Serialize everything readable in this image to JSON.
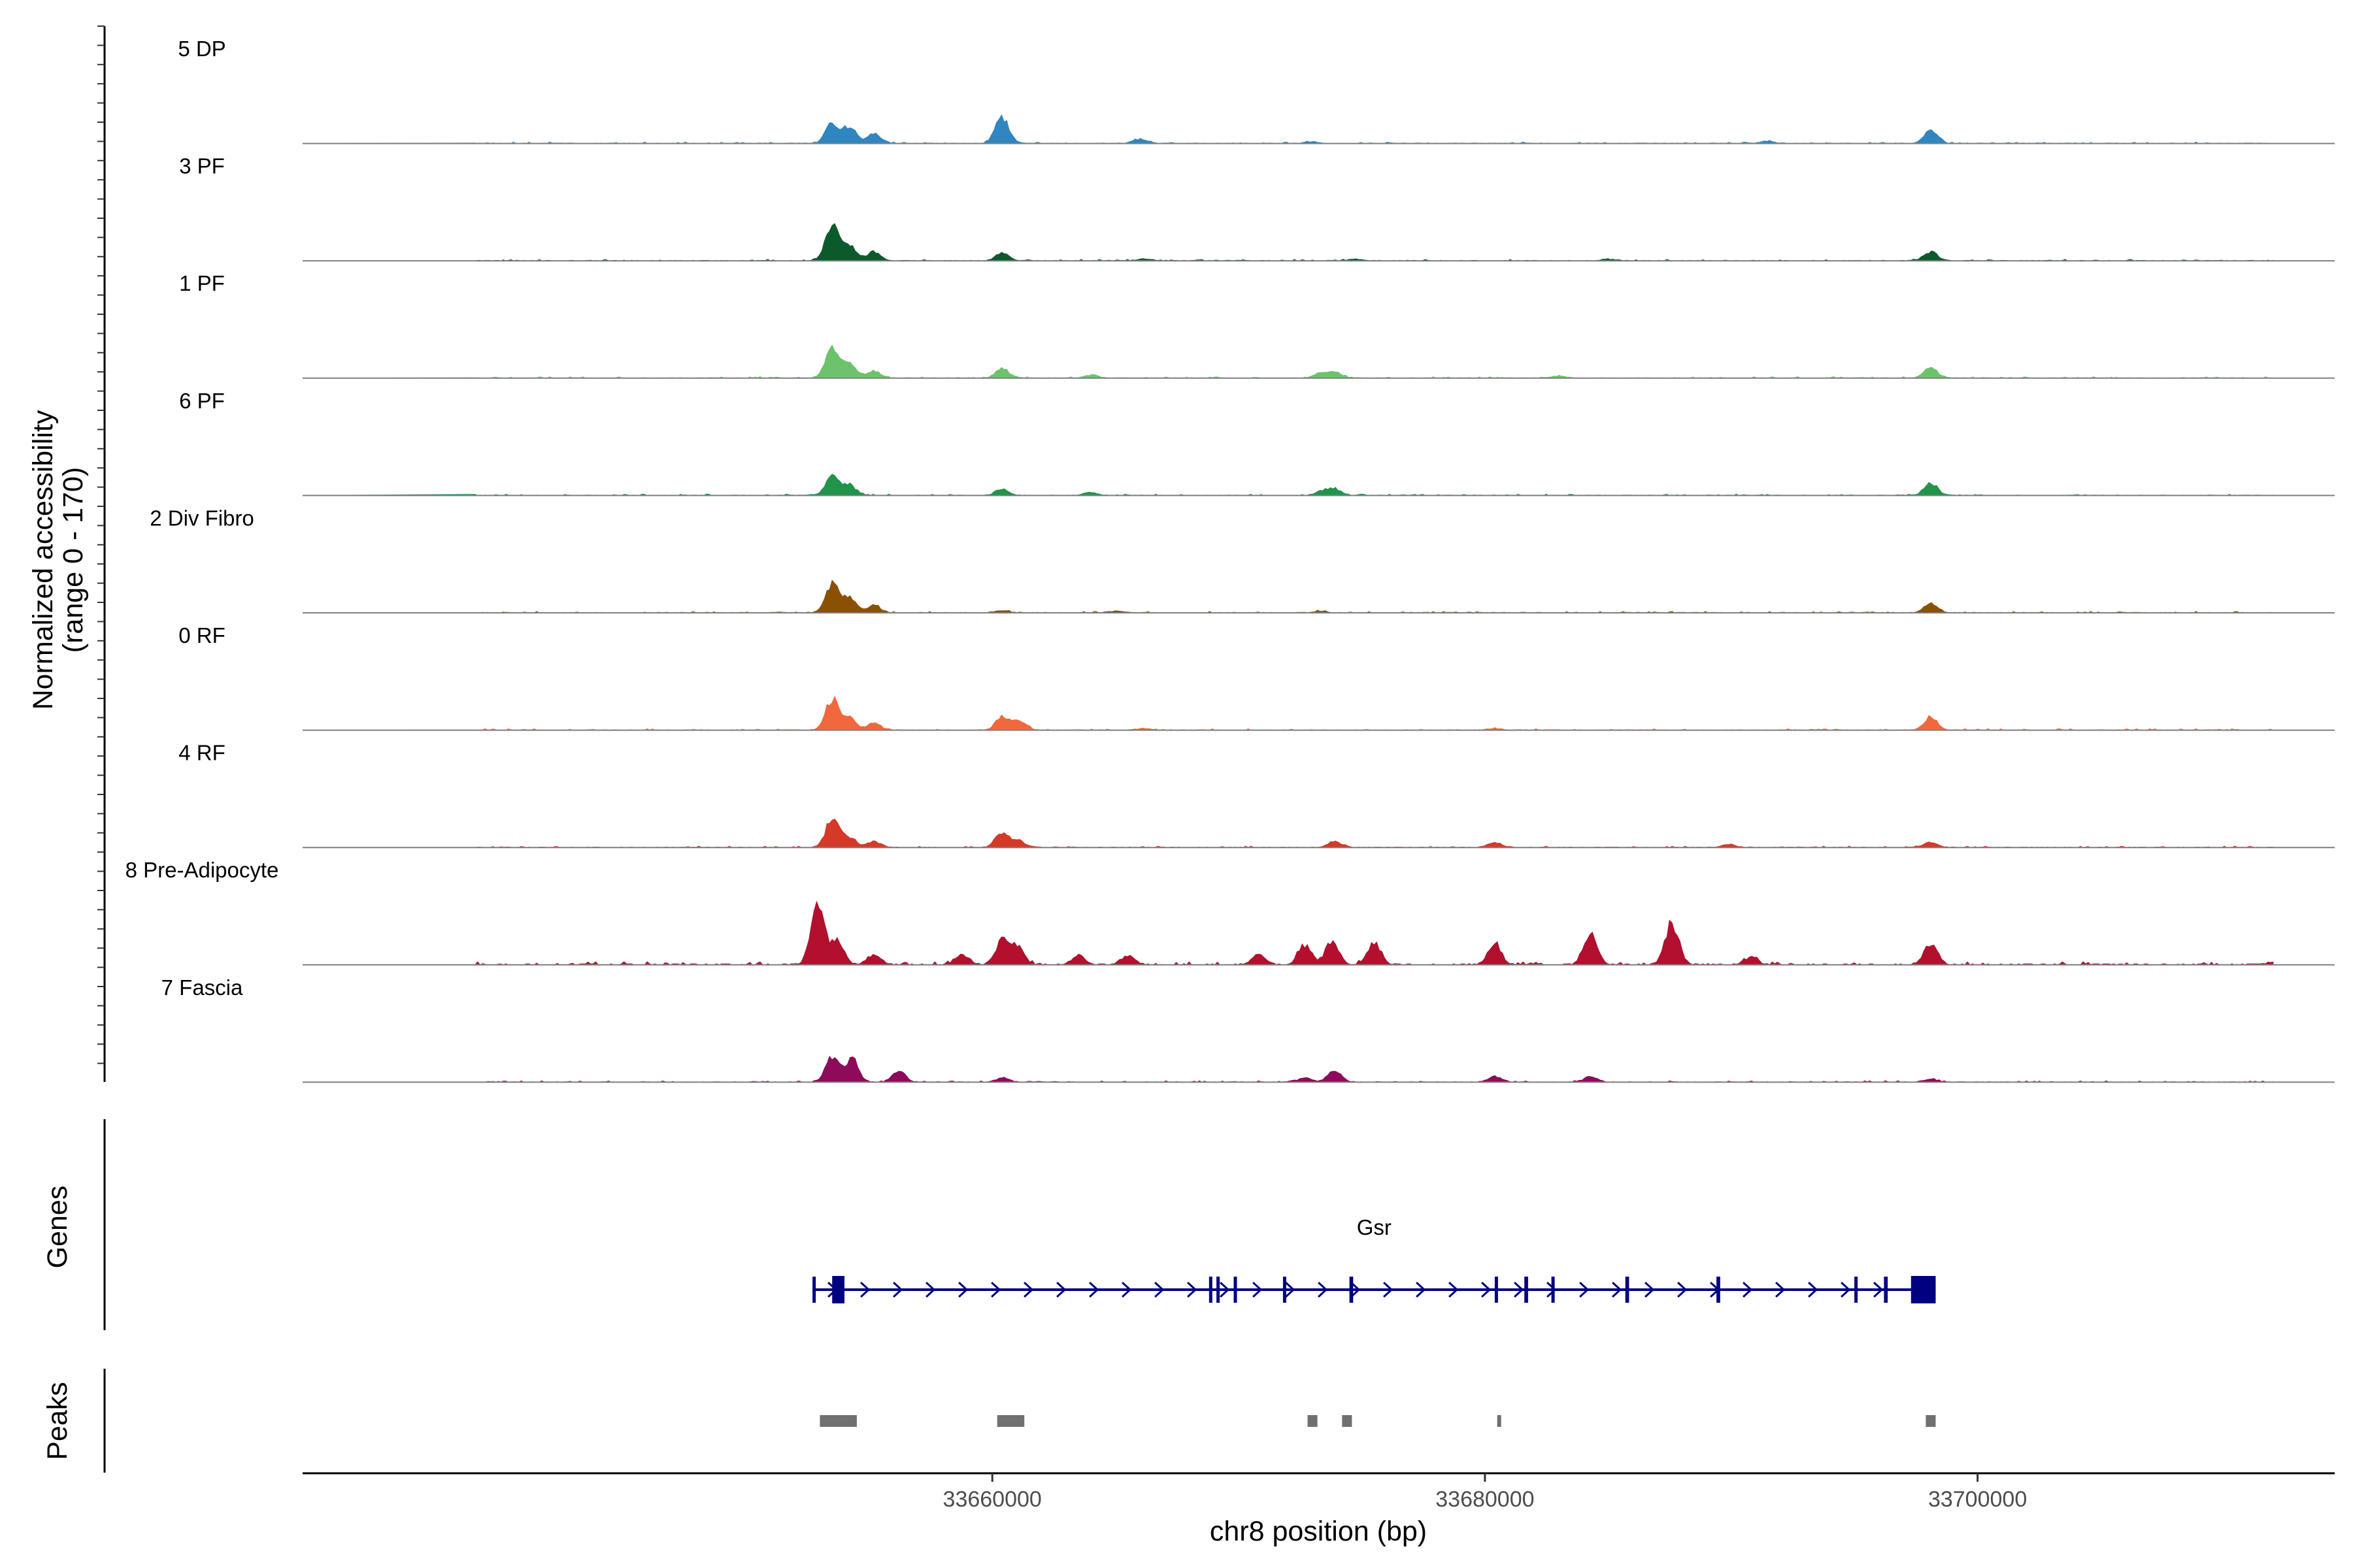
{
  "chart_data": {
    "type": "area",
    "title": "",
    "region": {
      "chrom": "chr8",
      "start": 33632000,
      "end": 33714500
    },
    "xlabel": "chr8 position (bp)",
    "ylabel": "Normalized accessibility",
    "ylabel_range": "(range 0 - 170)",
    "ylim": [
      0,
      170
    ],
    "xticks": [
      33660000,
      33680000,
      33700000
    ],
    "xtick_labels": [
      "33660000",
      "33680000",
      "33700000"
    ],
    "colors": {
      "5 DP": "#2f86c0",
      "3 PF": "#0b5a2b",
      "1 PF": "#6cc36b",
      "6 PF": "#1f944a",
      "2 Div Fibro": "#8a5104",
      "0 RF": "#f1683d",
      "4 RF": "#d43a27",
      "8 Pre-Adipocyte": "#b2102e",
      "7 Fascia": "#8e0a5a",
      "gene": "#000080",
      "peak": "#707070",
      "baseline": "#7f7f7f"
    },
    "series": [
      {
        "name": "5 DP",
        "values": [
          [
            33653500,
            38
          ],
          [
            33654200,
            32
          ],
          [
            33655200,
            20
          ],
          [
            33660400,
            52
          ],
          [
            33666000,
            8
          ],
          [
            33673000,
            3
          ],
          [
            33691500,
            4
          ],
          [
            33698100,
            25
          ]
        ]
      },
      {
        "name": "3 PF",
        "values": [
          [
            33653500,
            65
          ],
          [
            33654200,
            30
          ],
          [
            33655200,
            18
          ],
          [
            33660400,
            15
          ],
          [
            33666200,
            4
          ],
          [
            33674800,
            3
          ],
          [
            33685000,
            3
          ],
          [
            33698100,
            18
          ]
        ]
      },
      {
        "name": "1 PF",
        "values": [
          [
            33653500,
            55
          ],
          [
            33654200,
            30
          ],
          [
            33655200,
            14
          ],
          [
            33660400,
            18
          ],
          [
            33664000,
            6
          ],
          [
            33673300,
            9
          ],
          [
            33673900,
            12
          ],
          [
            33683000,
            4
          ],
          [
            33698100,
            20
          ]
        ]
      },
      {
        "name": "6 PF",
        "values": [
          [
            33653500,
            35
          ],
          [
            33654200,
            20
          ],
          [
            33660400,
            12
          ],
          [
            33664000,
            6
          ],
          [
            33673400,
            8
          ],
          [
            33673900,
            12
          ],
          [
            33698100,
            25
          ]
        ]
      },
      {
        "name": "2 Div Fibro",
        "values": [
          [
            33653500,
            55
          ],
          [
            33654200,
            28
          ],
          [
            33655200,
            14
          ],
          [
            33660400,
            4
          ],
          [
            33665000,
            3
          ],
          [
            33673300,
            3
          ],
          [
            33698100,
            18
          ]
        ]
      },
      {
        "name": "0 RF",
        "values": [
          [
            33653500,
            60
          ],
          [
            33654200,
            25
          ],
          [
            33655200,
            13
          ],
          [
            33660400,
            25
          ],
          [
            33661100,
            18
          ],
          [
            33666200,
            3
          ],
          [
            33680400,
            3
          ],
          [
            33698100,
            25
          ]
        ]
      },
      {
        "name": "4 RF",
        "values": [
          [
            33653500,
            55
          ],
          [
            33654200,
            20
          ],
          [
            33655200,
            12
          ],
          [
            33660400,
            28
          ],
          [
            33661100,
            12
          ],
          [
            33673900,
            12
          ],
          [
            33680400,
            10
          ],
          [
            33689900,
            6
          ],
          [
            33698100,
            10
          ]
        ]
      },
      {
        "name": "8 Pre-Adipocyte",
        "values": [
          [
            33652900,
            120
          ],
          [
            33653700,
            50
          ],
          [
            33655200,
            20
          ],
          [
            33658800,
            20
          ],
          [
            33660400,
            45
          ],
          [
            33661000,
            35
          ],
          [
            33663500,
            18
          ],
          [
            33665500,
            18
          ],
          [
            33670800,
            20
          ],
          [
            33672700,
            38
          ],
          [
            33673800,
            45
          ],
          [
            33675500,
            42
          ],
          [
            33680400,
            40
          ],
          [
            33684300,
            58
          ],
          [
            33687600,
            82
          ],
          [
            33690800,
            14
          ],
          [
            33698100,
            40
          ]
        ]
      },
      {
        "name": "7 Fascia",
        "values": [
          [
            33653500,
            50
          ],
          [
            33654300,
            45
          ],
          [
            33656200,
            20
          ],
          [
            33660400,
            8
          ],
          [
            33672700,
            8
          ],
          [
            33673900,
            22
          ],
          [
            33680400,
            12
          ],
          [
            33684300,
            10
          ],
          [
            33698100,
            6
          ]
        ]
      }
    ],
    "genes": [
      {
        "name": "Gsr",
        "strand": "+",
        "start": 33652700,
        "end": 33698300,
        "exons": [
          [
            33652700,
            33652800
          ],
          [
            33653500,
            33654000
          ],
          [
            33668800,
            33668900
          ],
          [
            33669100,
            33669200
          ],
          [
            33669800,
            33669900
          ],
          [
            33671800,
            33671900
          ],
          [
            33674500,
            33674650
          ],
          [
            33680400,
            33680500
          ],
          [
            33681600,
            33681750
          ],
          [
            33682700,
            33682800
          ],
          [
            33685700,
            33685850
          ],
          [
            33689400,
            33689550
          ],
          [
            33695000,
            33695100
          ],
          [
            33696200,
            33696350
          ],
          [
            33697300,
            33698300
          ]
        ]
      }
    ],
    "peaks": [
      [
        33653000,
        33654500
      ],
      [
        33660200,
        33661300
      ],
      [
        33672800,
        33673200
      ],
      [
        33674200,
        33674600
      ],
      [
        33680500,
        33680650
      ],
      [
        33697900,
        33698300
      ]
    ],
    "panels": {
      "genes_label": "Genes",
      "peaks_label": "Peaks"
    }
  }
}
